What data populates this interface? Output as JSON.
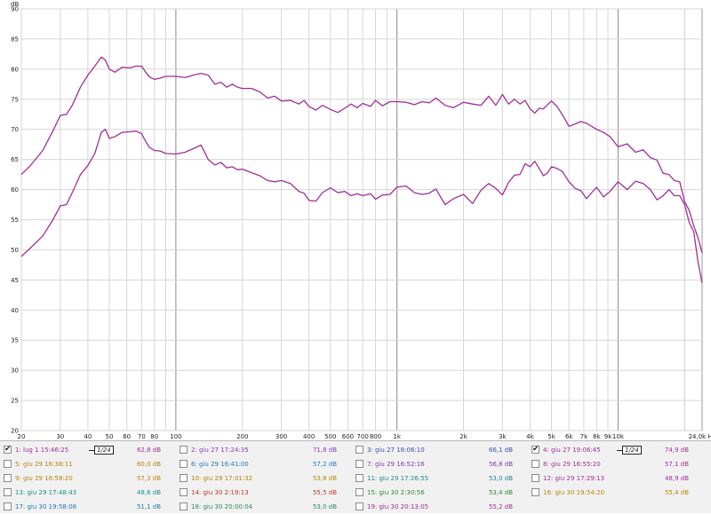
{
  "chart_data": {
    "type": "line",
    "ylabel": "dB",
    "xunit": "Hz",
    "xscale": "log",
    "xlim": [
      20,
      24000
    ],
    "ylim": [
      20,
      90
    ],
    "grid": true,
    "yticks": [
      20,
      25,
      30,
      35,
      40,
      45,
      50,
      55,
      60,
      65,
      70,
      75,
      80,
      85,
      90
    ],
    "xticks": [
      {
        "v": 20,
        "l": "20"
      },
      {
        "v": 30,
        "l": "30"
      },
      {
        "v": 40,
        "l": "40"
      },
      {
        "v": 50,
        "l": "50"
      },
      {
        "v": 60,
        "l": "60"
      },
      {
        "v": 70,
        "l": "70"
      },
      {
        "v": 80,
        "l": "80"
      },
      {
        "v": 100,
        "l": "100"
      },
      {
        "v": 200,
        "l": "200"
      },
      {
        "v": 300,
        "l": "300"
      },
      {
        "v": 400,
        "l": "400"
      },
      {
        "v": 500,
        "l": "500"
      },
      {
        "v": 600,
        "l": "600"
      },
      {
        "v": 700,
        "l": "700"
      },
      {
        "v": 800,
        "l": "800"
      },
      {
        "v": 1000,
        "l": "1k"
      },
      {
        "v": 2000,
        "l": "2k"
      },
      {
        "v": 3000,
        "l": "3k"
      },
      {
        "v": 4000,
        "l": "4k"
      },
      {
        "v": 5000,
        "l": "5k"
      },
      {
        "v": 6000,
        "l": "6k"
      },
      {
        "v": 7000,
        "l": "7k"
      },
      {
        "v": 8000,
        "l": "8k"
      },
      {
        "v": 9000,
        "l": "9k"
      },
      {
        "v": 10000,
        "l": "10k"
      },
      {
        "v": 24000,
        "l": "24,0k Hz"
      }
    ],
    "series": [
      {
        "color": "#a12f95",
        "points": [
          [
            20,
            62.5
          ],
          [
            22,
            64
          ],
          [
            25,
            66.5
          ],
          [
            28,
            70
          ],
          [
            30,
            72.3
          ],
          [
            32,
            72.5
          ],
          [
            34,
            74
          ],
          [
            37,
            77
          ],
          [
            40,
            79
          ],
          [
            43,
            80.5
          ],
          [
            46,
            82
          ],
          [
            48,
            81.5
          ],
          [
            50,
            80
          ],
          [
            53,
            79.5
          ],
          [
            57,
            80.3
          ],
          [
            62,
            80.2
          ],
          [
            66,
            80.5
          ],
          [
            70,
            80.5
          ],
          [
            73,
            79.5
          ],
          [
            76,
            78.7
          ],
          [
            80,
            78.3
          ],
          [
            85,
            78.5
          ],
          [
            90,
            78.8
          ],
          [
            100,
            78.8
          ],
          [
            110,
            78.6
          ],
          [
            120,
            79
          ],
          [
            130,
            79.3
          ],
          [
            140,
            79
          ],
          [
            150,
            77.5
          ],
          [
            160,
            77.8
          ],
          [
            170,
            77
          ],
          [
            180,
            77.5
          ],
          [
            190,
            77
          ],
          [
            200,
            76.8
          ],
          [
            220,
            76.8
          ],
          [
            240,
            76.2
          ],
          [
            260,
            75.2
          ],
          [
            280,
            75.5
          ],
          [
            300,
            74.7
          ],
          [
            330,
            74.8
          ],
          [
            360,
            74.2
          ],
          [
            380,
            74.8
          ],
          [
            400,
            73.8
          ],
          [
            430,
            73.2
          ],
          [
            460,
            74
          ],
          [
            500,
            73.3
          ],
          [
            540,
            72.8
          ],
          [
            580,
            73.5
          ],
          [
            620,
            74.2
          ],
          [
            660,
            73.6
          ],
          [
            700,
            74.3
          ],
          [
            760,
            73.8
          ],
          [
            800,
            74.8
          ],
          [
            860,
            73.9
          ],
          [
            930,
            74.6
          ],
          [
            1000,
            74.6
          ],
          [
            1100,
            74.5
          ],
          [
            1200,
            74.1
          ],
          [
            1300,
            74.6
          ],
          [
            1400,
            74.4
          ],
          [
            1500,
            75.2
          ],
          [
            1650,
            74
          ],
          [
            1800,
            73.6
          ],
          [
            2000,
            74.5
          ],
          [
            2200,
            74.2
          ],
          [
            2400,
            74
          ],
          [
            2600,
            75.5
          ],
          [
            2800,
            74
          ],
          [
            3000,
            75.8
          ],
          [
            3200,
            74.2
          ],
          [
            3400,
            75
          ],
          [
            3600,
            74.2
          ],
          [
            3800,
            74.8
          ],
          [
            4000,
            73.4
          ],
          [
            4200,
            72.7
          ],
          [
            4400,
            73.5
          ],
          [
            4600,
            73.4
          ],
          [
            4800,
            74.1
          ],
          [
            5000,
            74.7
          ],
          [
            5300,
            73.8
          ],
          [
            5600,
            72.4
          ],
          [
            6000,
            70.5
          ],
          [
            6400,
            70.9
          ],
          [
            6800,
            71.3
          ],
          [
            7200,
            71
          ],
          [
            7600,
            70.5
          ],
          [
            8000,
            70
          ],
          [
            8600,
            69.5
          ],
          [
            9200,
            68.8
          ],
          [
            10000,
            67.1
          ],
          [
            11000,
            67.6
          ],
          [
            12000,
            66.2
          ],
          [
            13000,
            66.6
          ],
          [
            14000,
            65.3
          ],
          [
            15000,
            64.9
          ],
          [
            16000,
            62.7
          ],
          [
            17000,
            62.5
          ],
          [
            18000,
            61.5
          ],
          [
            19000,
            61.3
          ],
          [
            20000,
            58
          ],
          [
            21000,
            56.5
          ],
          [
            22000,
            54
          ],
          [
            23000,
            52
          ],
          [
            24000,
            49.5
          ]
        ]
      },
      {
        "color": "#a12f95",
        "points": [
          [
            20,
            48.9
          ],
          [
            22,
            50.3
          ],
          [
            25,
            52.3
          ],
          [
            28,
            55.2
          ],
          [
            30,
            57.3
          ],
          [
            32,
            57.5
          ],
          [
            34,
            59.5
          ],
          [
            37,
            62.5
          ],
          [
            40,
            64
          ],
          [
            43,
            66
          ],
          [
            46,
            69.5
          ],
          [
            48,
            70
          ],
          [
            50,
            68.5
          ],
          [
            53,
            68.8
          ],
          [
            57,
            69.5
          ],
          [
            62,
            69.6
          ],
          [
            66,
            69.7
          ],
          [
            70,
            69.3
          ],
          [
            73,
            68
          ],
          [
            76,
            67
          ],
          [
            80,
            66.5
          ],
          [
            85,
            66.4
          ],
          [
            90,
            66
          ],
          [
            100,
            65.9
          ],
          [
            110,
            66.2
          ],
          [
            120,
            66.8
          ],
          [
            130,
            67.4
          ],
          [
            140,
            65
          ],
          [
            150,
            64.1
          ],
          [
            160,
            64.5
          ],
          [
            170,
            63.6
          ],
          [
            180,
            63.8
          ],
          [
            190,
            63.3
          ],
          [
            200,
            63.4
          ],
          [
            220,
            62.8
          ],
          [
            240,
            62.3
          ],
          [
            260,
            61.5
          ],
          [
            280,
            61.3
          ],
          [
            300,
            61.5
          ],
          [
            330,
            61
          ],
          [
            360,
            59.7
          ],
          [
            380,
            59.4
          ],
          [
            400,
            58.2
          ],
          [
            430,
            58.1
          ],
          [
            460,
            59.5
          ],
          [
            500,
            60.3
          ],
          [
            540,
            59.5
          ],
          [
            580,
            59.7
          ],
          [
            620,
            59
          ],
          [
            660,
            59.3
          ],
          [
            700,
            59
          ],
          [
            760,
            59.3
          ],
          [
            800,
            58.4
          ],
          [
            860,
            59.1
          ],
          [
            930,
            59.2
          ],
          [
            1000,
            60.4
          ],
          [
            1100,
            60.6
          ],
          [
            1200,
            59.5
          ],
          [
            1300,
            59.2
          ],
          [
            1400,
            59.4
          ],
          [
            1500,
            60.1
          ],
          [
            1650,
            57.5
          ],
          [
            1800,
            58.5
          ],
          [
            2000,
            59.2
          ],
          [
            2200,
            57.7
          ],
          [
            2400,
            59.9
          ],
          [
            2600,
            61
          ],
          [
            2800,
            60.2
          ],
          [
            3000,
            59.1
          ],
          [
            3200,
            61.2
          ],
          [
            3400,
            62.4
          ],
          [
            3600,
            62.5
          ],
          [
            3800,
            64.3
          ],
          [
            4000,
            63.8
          ],
          [
            4200,
            64.7
          ],
          [
            4400,
            63.5
          ],
          [
            4600,
            62.3
          ],
          [
            4800,
            62.8
          ],
          [
            5000,
            63.8
          ],
          [
            5300,
            63.5
          ],
          [
            5600,
            63
          ],
          [
            6000,
            61.3
          ],
          [
            6400,
            60.2
          ],
          [
            6800,
            59.8
          ],
          [
            7200,
            58.5
          ],
          [
            7600,
            59.5
          ],
          [
            8000,
            60.4
          ],
          [
            8600,
            58.8
          ],
          [
            9200,
            59.7
          ],
          [
            10000,
            61.3
          ],
          [
            11000,
            60
          ],
          [
            12000,
            61.4
          ],
          [
            13000,
            61
          ],
          [
            14000,
            60
          ],
          [
            15000,
            58.3
          ],
          [
            16000,
            59
          ],
          [
            17000,
            60
          ],
          [
            18000,
            59
          ],
          [
            19000,
            59
          ],
          [
            20000,
            57.5
          ],
          [
            21000,
            54.5
          ],
          [
            22000,
            53
          ],
          [
            23000,
            48
          ],
          [
            24000,
            44.5
          ]
        ]
      }
    ]
  },
  "legend": {
    "rows": [
      [
        {
          "label": "1: lug 1 15:46:25",
          "value": "62,8 dB",
          "checked": true,
          "smoothing": "1/24",
          "color": "#a12f95"
        },
        {
          "label": "2: giu 27 17:24:35",
          "value": "71,8 dB",
          "checked": false,
          "color": "#8a3ab0"
        },
        {
          "label": "3: giu 27 18:06:10",
          "value": "66,1 dB",
          "checked": false,
          "color": "#3a4fb8"
        },
        {
          "label": "4: giu 27 19:06:45",
          "value": "74,9 dB",
          "checked": true,
          "smoothing": "1/24",
          "color": "#a12f95"
        }
      ],
      [
        {
          "label": "5: giu 29 16:38:11",
          "value": "60,0 dB",
          "checked": false,
          "color": "#b8860b"
        },
        {
          "label": "6: giu 29 16:41:00",
          "value": "57,2 dB",
          "checked": false,
          "color": "#1f7ab8"
        },
        {
          "label": "7: giu 29 16:52:16",
          "value": "56,8 dB",
          "checked": false,
          "color": "#7a3aa8"
        },
        {
          "label": "8: giu 29 16:55:20",
          "value": "57,1 dB",
          "checked": false,
          "color": "#a12f95"
        }
      ],
      [
        {
          "label": "9: giu 29 16:58:20",
          "value": "57,3 dB",
          "checked": false,
          "color": "#b8860b"
        },
        {
          "label": "10: giu 29 17:01:32",
          "value": "53,8 dB",
          "checked": false,
          "color": "#b8860b"
        },
        {
          "label": "11: giu 29 17:26:55",
          "value": "53,0 dB",
          "checked": false,
          "color": "#1f8a8a"
        },
        {
          "label": "12: giu 29 17:29:13",
          "value": "48,9 dB",
          "checked": false,
          "color": "#a12f95"
        }
      ],
      [
        {
          "label": "13: giu 29 17:48:43",
          "value": "48,6 dB",
          "checked": false,
          "color": "#1f8a8a"
        },
        {
          "label": "14: giu 30 2:19:13",
          "value": "55,5 dB",
          "checked": false,
          "color": "#c0392b"
        },
        {
          "label": "15: giu 30 2:30:56",
          "value": "53,4 dB",
          "checked": false,
          "color": "#2e8b2e"
        },
        {
          "label": "16: giu 30 19:54:20",
          "value": "55,4 dB",
          "checked": false,
          "color": "#b8860b"
        }
      ],
      [
        {
          "label": "17: giu 30 19:58:08",
          "value": "51,1 dB",
          "checked": false,
          "color": "#1f7ab8"
        },
        {
          "label": "18: giu 30 20:00:04",
          "value": "53,0 dB",
          "checked": false,
          "color": "#2e8b5e"
        },
        {
          "label": "19: giu 30 20:13:05",
          "value": "55,2 dB",
          "checked": false,
          "color": "#a12f95"
        }
      ]
    ]
  }
}
